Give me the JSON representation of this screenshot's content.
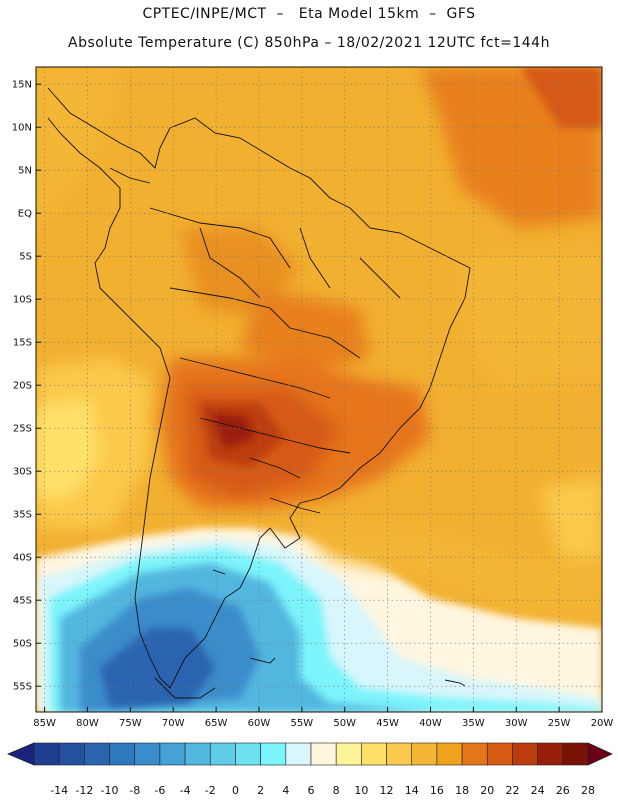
{
  "header": {
    "line1": "CPTEC/INPE/MCT  –   Eta Model 15km  –  GFS",
    "line2": "Absolute Temperature (C) 850hPa – 18/02/2021 12UTC fct=144h"
  },
  "map": {
    "lat_ticks": [
      "15N",
      "10N",
      "5N",
      "EQ",
      "5S",
      "10S",
      "15S",
      "20S",
      "25S",
      "30S",
      "35S",
      "40S",
      "45S",
      "50S",
      "55S"
    ],
    "lon_ticks": [
      "85W",
      "80W",
      "75W",
      "70W",
      "65W",
      "60W",
      "55W",
      "50W",
      "45W",
      "40W",
      "35W",
      "30W",
      "25W",
      "20W"
    ],
    "lat_range": [
      17,
      -58
    ],
    "lon_range": [
      -86,
      -20
    ]
  },
  "colorbar": {
    "labels": [
      "-14",
      "-12",
      "-10",
      "-8",
      "-6",
      "-4",
      "-2",
      "0",
      "2",
      "4",
      "6",
      "8",
      "10",
      "12",
      "14",
      "16",
      "18",
      "20",
      "22",
      "24",
      "26",
      "28"
    ],
    "low_color": "#1a237e",
    "high_color": "#6b0016",
    "colors": [
      "#1e3f8f",
      "#2450a0",
      "#2a63b0",
      "#2f77be",
      "#3a8ccb",
      "#46a1d6",
      "#52b6df",
      "#5fcce8",
      "#6de0f1",
      "#7cf4fb",
      "#d8f6fb",
      "#fff6e0",
      "#fff598",
      "#ffe16a",
      "#fbc94c",
      "#f4b634",
      "#f0a21c",
      "#e6751a",
      "#d65a12",
      "#bc3c0e",
      "#9a1f0a",
      "#7a1208"
    ]
  }
}
